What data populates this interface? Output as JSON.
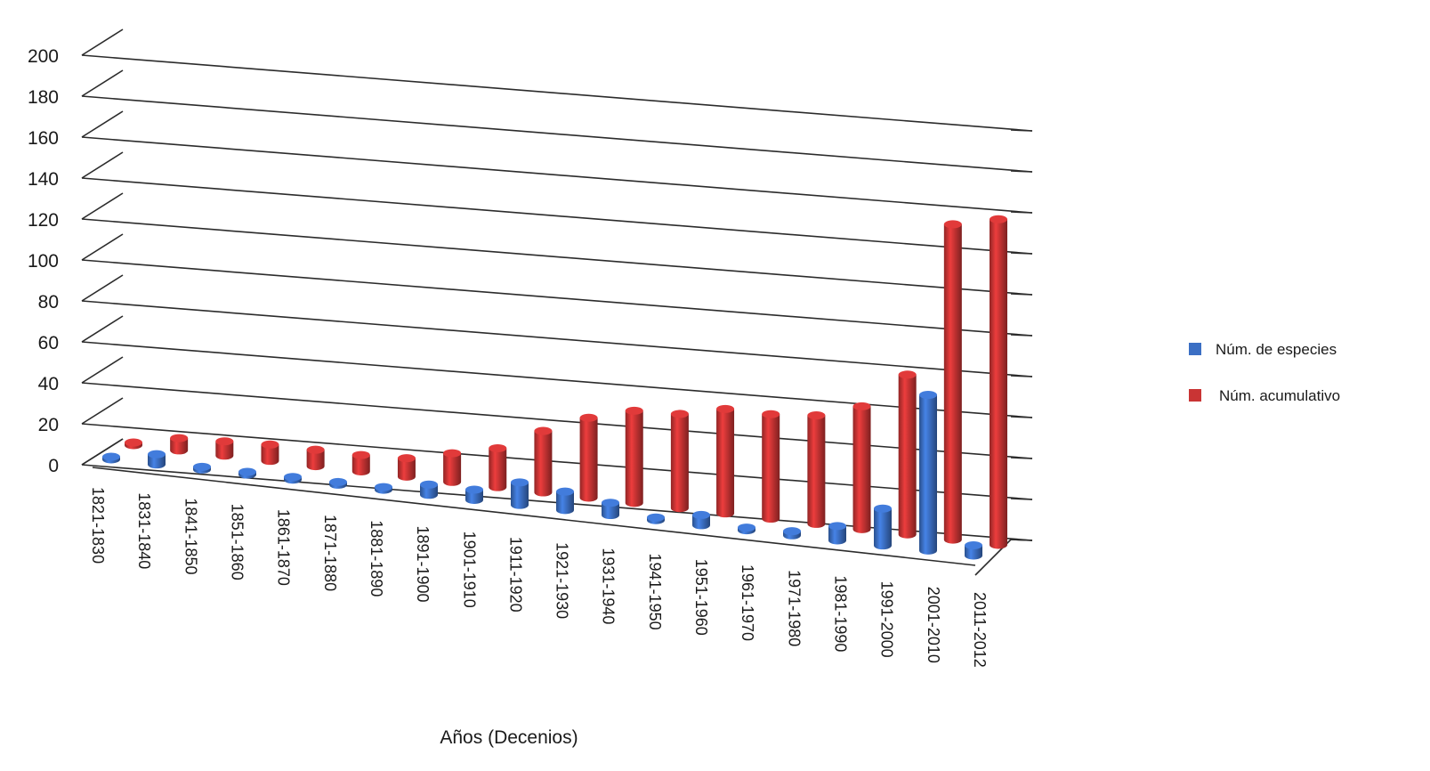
{
  "chart_data": {
    "type": "bar",
    "variant": "3d-column",
    "title": "",
    "xlabel": "Años (Decenios)",
    "ylabel": "",
    "ylim": [
      0,
      200
    ],
    "yticks": [
      0,
      20,
      40,
      60,
      80,
      100,
      120,
      140,
      160,
      180,
      200
    ],
    "grid": true,
    "legend_position": "right",
    "categories": [
      "1821-1830",
      "1831-1840",
      "1841-1850",
      "1851-1860",
      "1861-1870",
      "1871-1880",
      "1881-1890",
      "1891-1900",
      "1901-1910",
      "1911-1920",
      "1921-1930",
      "1931-1940",
      "1941-1950",
      "1951-1960",
      "1961-1970",
      "1971-1980",
      "1981-1990",
      "1991-2000",
      "2001-2010",
      "2011-2012"
    ],
    "series": [
      {
        "name": "Núm. de especies",
        "color": "#3b6fc4",
        "values": [
          1,
          5,
          1,
          1,
          0,
          0,
          1,
          5,
          5,
          11,
          9,
          6,
          1,
          5,
          0,
          2,
          7,
          18,
          76,
          5
        ]
      },
      {
        "name": "Núm. acumulativo",
        "color": "#c93434",
        "values": [
          1,
          6,
          7,
          8,
          8,
          8,
          9,
          14,
          19,
          30,
          39,
          45,
          46,
          51,
          51,
          53,
          60,
          78,
          154,
          159
        ]
      }
    ]
  }
}
